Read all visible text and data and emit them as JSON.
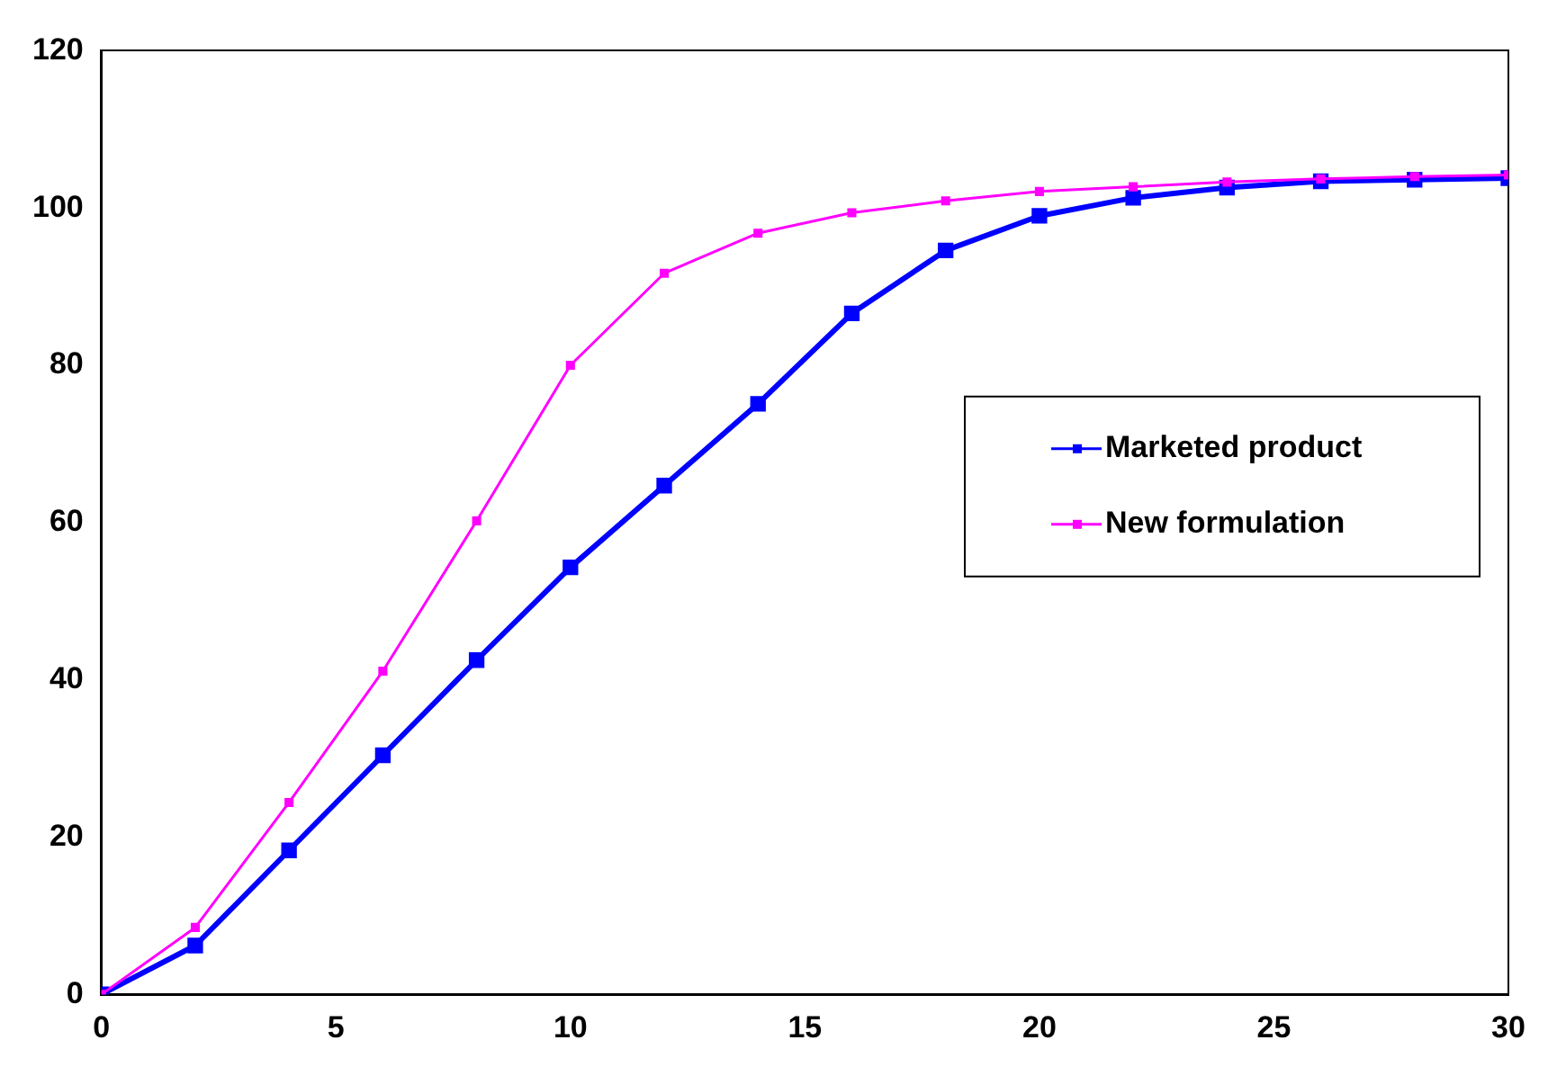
{
  "chart_data": {
    "type": "line",
    "x": [
      0,
      2,
      4,
      6,
      8,
      10,
      12,
      14,
      16,
      18,
      20,
      22,
      24,
      26,
      28,
      30
    ],
    "series": [
      {
        "name": "Marketed product",
        "color": "#0000ff",
        "values": [
          0,
          6.2,
          18.3,
          30.4,
          42.5,
          54.3,
          64.7,
          75.1,
          86.6,
          94.6,
          99.0,
          101.3,
          102.6,
          103.4,
          103.6,
          103.8
        ]
      },
      {
        "name": "New formulation",
        "color": "#ff00ff",
        "values": [
          0,
          8.5,
          24.4,
          41.1,
          60.2,
          80,
          91.7,
          96.8,
          99.4,
          100.9,
          102.1,
          102.7,
          103.3,
          103.7,
          104,
          104.2
        ]
      }
    ],
    "xlim": [
      0,
      30
    ],
    "xticks": [
      0,
      5,
      10,
      15,
      20,
      25,
      30
    ],
    "ylim": [
      0,
      120
    ],
    "yticks": [
      0,
      20,
      40,
      60,
      80,
      100,
      120
    ],
    "grid": false,
    "legend": "right",
    "marker": "square",
    "line_style": "solid"
  }
}
